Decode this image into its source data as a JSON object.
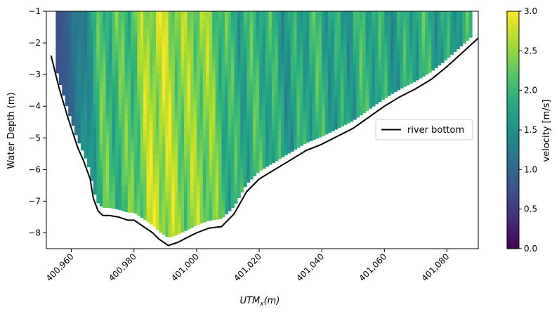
{
  "chart_data": {
    "type": "heatmap",
    "title": "",
    "xlabel_base": "UTM",
    "xlabel_sub": "x",
    "xlabel_unit": "(m)",
    "ylabel": "Water Depth (m)",
    "xlim": [
      400952,
      401090
    ],
    "ylim": [
      -8.5,
      -1
    ],
    "xticks": [
      400960,
      400980,
      401000,
      401020,
      401040,
      401060,
      401080
    ],
    "xtick_labels": [
      "400,960",
      "400,980",
      "401,000",
      "401,020",
      "401,040",
      "401,060",
      "401,080"
    ],
    "yticks": [
      -1,
      -2,
      -3,
      -4,
      -5,
      -6,
      -7,
      -8
    ],
    "ytick_labels": [
      "−1",
      "−2",
      "−3",
      "−4",
      "−5",
      "−6",
      "−7",
      "−8"
    ],
    "colormap": "viridis",
    "colorbar": {
      "label": "velocity [m/s]",
      "range": [
        0.0,
        3.0
      ],
      "ticks": [
        0.0,
        0.5,
        1.0,
        1.5,
        2.0,
        2.5,
        3.0
      ],
      "tick_labels": [
        "0.0",
        "0.5",
        "1.0",
        "1.5",
        "2.0",
        "2.5",
        "3.0"
      ]
    },
    "legend": {
      "position": "center-right",
      "entries": [
        "river bottom"
      ]
    },
    "series": [
      {
        "name": "river bottom",
        "type": "line",
        "color": "#000000",
        "x": [
          400953.5,
          400956,
          400959,
          400962,
          400964,
          400966,
          400967,
          400968.5,
          400970,
          400972,
          400975,
          400978,
          400980,
          400983,
          400986,
          400988,
          400991,
          400994,
          400997,
          401000,
          401004,
          401008,
          401012,
          401016,
          401020,
          401025,
          401030,
          401035,
          401040,
          401045,
          401050,
          401055,
          401060,
          401065,
          401070,
          401075,
          401080,
          401085,
          401090
        ],
        "y": [
          -2.4,
          -3.4,
          -4.4,
          -5.3,
          -5.75,
          -6.3,
          -6.9,
          -7.3,
          -7.45,
          -7.45,
          -7.5,
          -7.6,
          -7.6,
          -7.8,
          -8.0,
          -8.2,
          -8.4,
          -8.3,
          -8.15,
          -8.0,
          -7.85,
          -7.8,
          -7.4,
          -6.7,
          -6.3,
          -6.0,
          -5.7,
          -5.4,
          -5.2,
          -4.95,
          -4.7,
          -4.35,
          -4.0,
          -3.7,
          -3.45,
          -3.15,
          -2.75,
          -2.3,
          -1.85
        ]
      }
    ],
    "velocity_field": {
      "description_x": "UTM x (m)",
      "left_edge_velocity": 0.7,
      "core_velocity_peak": 2.6,
      "core_x": 400991,
      "right_side_mean_velocity": 1.8
    }
  }
}
